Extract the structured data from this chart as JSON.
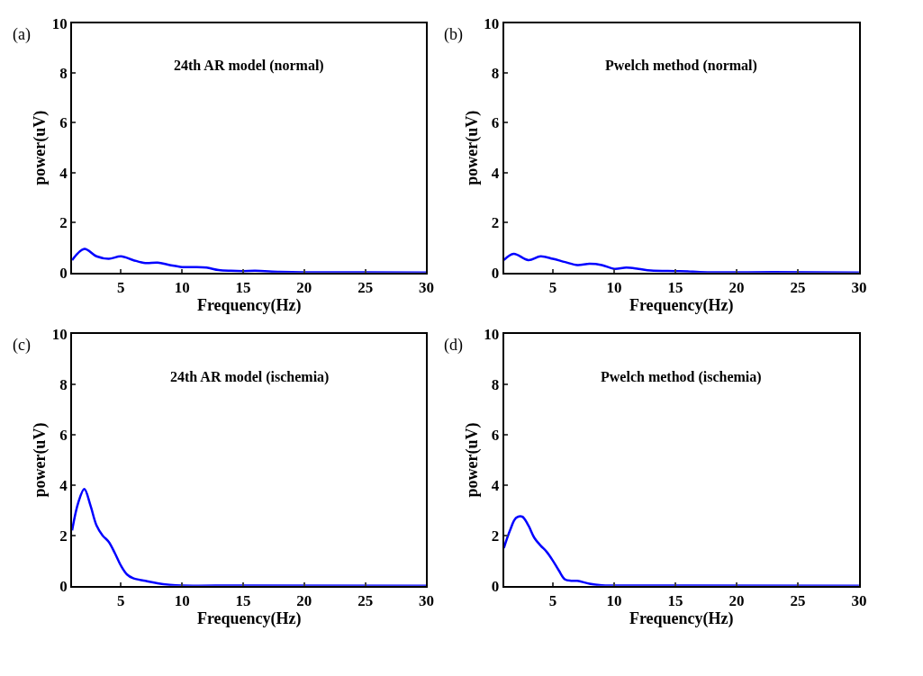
{
  "chart_data": [
    {
      "type": "line",
      "title": "(a)",
      "annotations": [
        "24th AR model (normal)"
      ],
      "xlabel": "Frequency(Hz)",
      "ylabel": "power(uV)",
      "xlim": [
        1,
        30
      ],
      "xticks": [
        5,
        10,
        15,
        20,
        25,
        30
      ],
      "ylim": [
        0,
        10
      ],
      "yticks": [
        0,
        2,
        4,
        6,
        8,
        10
      ],
      "line_style": "solid",
      "series": [
        {
          "color": "#0000ff",
          "x": [
            1,
            2,
            3,
            4,
            5,
            6,
            7,
            8,
            9,
            10,
            11,
            12,
            13,
            14,
            15,
            16,
            18,
            20,
            25,
            30
          ],
          "values": [
            0.5,
            0.95,
            0.65,
            0.55,
            0.65,
            0.5,
            0.38,
            0.4,
            0.3,
            0.22,
            0.22,
            0.2,
            0.1,
            0.07,
            0.06,
            0.07,
            0.03,
            0.01,
            0.01,
            0
          ]
        }
      ]
    },
    {
      "type": "line",
      "title": "(b)",
      "annotations": [
        "Pwelch method (normal)"
      ],
      "xlabel": "Frequency(Hz)",
      "ylabel": "power(uV)",
      "xlim": [
        1,
        30
      ],
      "xticks": [
        5,
        10,
        15,
        20,
        25,
        30
      ],
      "ylim": [
        0,
        10
      ],
      "yticks": [
        0,
        2,
        4,
        6,
        8,
        10
      ],
      "line_style": "solid",
      "series": [
        {
          "color": "#0000ff",
          "x": [
            1,
            1.8,
            3,
            4,
            5,
            6,
            7,
            8,
            9,
            10,
            11,
            12,
            13,
            15,
            16,
            17,
            20,
            23,
            30
          ],
          "values": [
            0.5,
            0.75,
            0.5,
            0.65,
            0.55,
            0.42,
            0.3,
            0.35,
            0.3,
            0.15,
            0.2,
            0.15,
            0.08,
            0.06,
            0.05,
            0.02,
            0.01,
            0.02,
            0
          ]
        }
      ]
    },
    {
      "type": "line",
      "title": "(c)",
      "annotations": [
        "24th AR model (ischemia)"
      ],
      "xlabel": "Frequency(Hz)",
      "ylabel": "power(uV)",
      "xlim": [
        1,
        30
      ],
      "xticks": [
        5,
        10,
        15,
        20,
        25,
        30
      ],
      "ylim": [
        0,
        10
      ],
      "yticks": [
        0,
        2,
        4,
        6,
        8,
        10
      ],
      "line_style": "solid",
      "series": [
        {
          "color": "#0000ff",
          "x": [
            1,
            1.5,
            2,
            2.5,
            3,
            3.5,
            4,
            4.5,
            5,
            5.5,
            6,
            7,
            8,
            9,
            10,
            15,
            30
          ],
          "values": [
            2.2,
            3.3,
            3.85,
            3.2,
            2.4,
            2.0,
            1.75,
            1.3,
            0.8,
            0.45,
            0.3,
            0.2,
            0.1,
            0.04,
            0.01,
            0.01,
            0
          ]
        }
      ]
    },
    {
      "type": "line",
      "title": "(d)",
      "annotations": [
        "Pwelch method (ischemia)"
      ],
      "xlabel": "Frequency(Hz)",
      "ylabel": "power(uV)",
      "xlim": [
        1,
        30
      ],
      "xticks": [
        5,
        10,
        15,
        20,
        25,
        30
      ],
      "ylim": [
        0,
        10
      ],
      "yticks": [
        0,
        2,
        4,
        6,
        8,
        10
      ],
      "line_style": "solid",
      "series": [
        {
          "color": "#0000ff",
          "x": [
            1,
            1.5,
            2,
            2.5,
            3,
            3.5,
            4,
            4.5,
            5,
            5.5,
            6,
            6.5,
            7,
            8,
            9,
            10,
            15,
            30
          ],
          "values": [
            1.5,
            2.2,
            2.7,
            2.75,
            2.4,
            1.9,
            1.6,
            1.35,
            1.0,
            0.6,
            0.25,
            0.2,
            0.2,
            0.08,
            0.02,
            0.01,
            0.01,
            0
          ]
        }
      ]
    }
  ]
}
